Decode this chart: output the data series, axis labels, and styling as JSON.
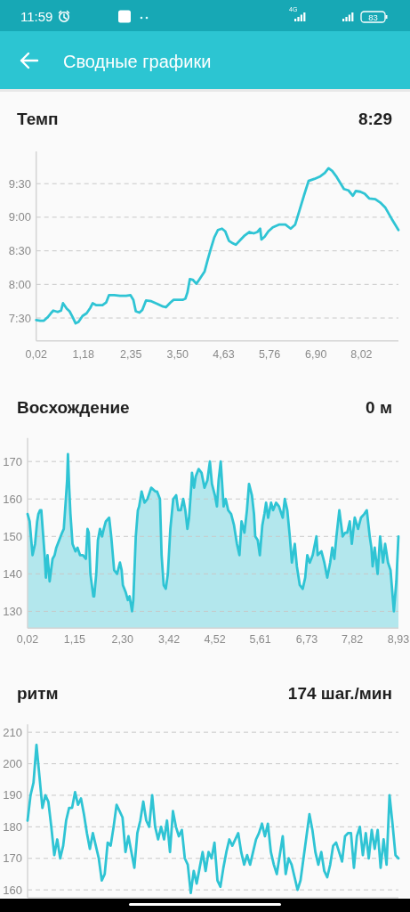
{
  "chart_data": [
    {
      "type": "other",
      "title": "Сводные графики",
      "annotations": [
        "11:59",
        "4G",
        "83"
      ]
    },
    {
      "type": "line",
      "title": "Темп",
      "subtitle": "8:29",
      "color": "#2fc4d4",
      "grid": "y",
      "xlim": [
        0.02,
        8.93
      ],
      "xticks": [
        {
          "value": 0.02,
          "label": "0,02"
        },
        {
          "value": 1.18,
          "label": "1,18"
        },
        {
          "value": 2.35,
          "label": "2,35"
        },
        {
          "value": 3.5,
          "label": "3,50"
        },
        {
          "value": 4.63,
          "label": "4,63"
        },
        {
          "value": 5.76,
          "label": "5,76"
        },
        {
          "value": 6.9,
          "label": "6,90"
        },
        {
          "value": 8.02,
          "label": "8,02"
        }
      ],
      "ylim": [
        7.16,
        9.98
      ],
      "yticks": [
        {
          "value": 7.5,
          "label": "7:30"
        },
        {
          "value": 8,
          "label": "8:00"
        },
        {
          "value": 8.5,
          "label": "8:30"
        },
        {
          "value": 9,
          "label": "9:00"
        },
        {
          "value": 9.5,
          "label": "9:30"
        }
      ],
      "x": [
        0.02,
        0.12,
        0.21,
        0.3,
        0.38,
        0.44,
        0.55,
        0.63,
        0.68,
        0.77,
        0.84,
        0.92,
        0.99,
        1.06,
        1.16,
        1.26,
        1.35,
        1.41,
        1.5,
        1.65,
        1.74,
        1.81,
        1.94,
        2.08,
        2.23,
        2.34,
        2.41,
        2.47,
        2.56,
        2.63,
        2.72,
        2.85,
        3.0,
        3.14,
        3.21,
        3.32,
        3.4,
        3.51,
        3.62,
        3.69,
        3.74,
        3.8,
        3.87,
        3.96,
        4.03,
        4.16,
        4.24,
        4.32,
        4.4,
        4.49,
        4.59,
        4.67,
        4.76,
        4.86,
        4.93,
        5.04,
        5.15,
        5.26,
        5.37,
        5.46,
        5.53,
        5.56,
        5.64,
        5.73,
        5.84,
        5.99,
        6.15,
        6.28,
        6.39,
        6.5,
        6.61,
        6.72,
        6.86,
        7.01,
        7.12,
        7.21,
        7.3,
        7.41,
        7.52,
        7.59,
        7.7,
        7.81,
        7.88,
        7.99,
        8.1,
        8.21,
        8.36,
        8.48,
        8.61,
        8.76,
        8.93
      ],
      "values": [
        7.47,
        7.46,
        7.46,
        7.51,
        7.57,
        7.61,
        7.59,
        7.61,
        7.72,
        7.64,
        7.6,
        7.51,
        7.42,
        7.44,
        7.53,
        7.57,
        7.65,
        7.72,
        7.69,
        7.69,
        7.73,
        7.84,
        7.84,
        7.83,
        7.83,
        7.84,
        7.77,
        7.6,
        7.58,
        7.62,
        7.76,
        7.75,
        7.71,
        7.67,
        7.66,
        7.73,
        7.77,
        7.77,
        7.77,
        7.79,
        7.88,
        8.08,
        8.07,
        8.01,
        8.07,
        8.19,
        8.37,
        8.54,
        8.7,
        8.81,
        8.83,
        8.79,
        8.65,
        8.61,
        8.59,
        8.66,
        8.73,
        8.78,
        8.76,
        8.78,
        8.83,
        8.67,
        8.71,
        8.79,
        8.85,
        8.89,
        8.89,
        8.83,
        8.89,
        9.11,
        9.33,
        9.54,
        9.57,
        9.61,
        9.66,
        9.73,
        9.69,
        9.6,
        9.49,
        9.42,
        9.4,
        9.32,
        9.39,
        9.38,
        9.35,
        9.28,
        9.27,
        9.22,
        9.14,
        8.98,
        8.81
      ]
    },
    {
      "type": "area",
      "title": "Восхождение",
      "subtitle": "0 м",
      "color": "#2fc4d4",
      "grid": "y",
      "xlim": [
        0.02,
        8.93
      ],
      "xticks": [
        {
          "value": 0.02,
          "label": "0,02"
        },
        {
          "value": 1.15,
          "label": "1,15"
        },
        {
          "value": 2.3,
          "label": "2,30"
        },
        {
          "value": 3.42,
          "label": "3,42"
        },
        {
          "value": 4.52,
          "label": "4,52"
        },
        {
          "value": 5.61,
          "label": "5,61"
        },
        {
          "value": 6.73,
          "label": "6,73"
        },
        {
          "value": 7.82,
          "label": "7,82"
        },
        {
          "value": 8.93,
          "label": "8,93"
        }
      ],
      "ylim": [
        125.5,
        176.3
      ],
      "yticks": [
        130,
        140,
        150,
        160,
        170
      ],
      "x": [
        0.02,
        0.07,
        0.14,
        0.2,
        0.25,
        0.28,
        0.32,
        0.35,
        0.39,
        0.43,
        0.46,
        0.5,
        0.55,
        0.62,
        0.67,
        0.71,
        0.78,
        0.85,
        0.89,
        0.94,
        0.97,
        0.99,
        1.02,
        1.05,
        1.1,
        1.17,
        1.22,
        1.28,
        1.35,
        1.42,
        1.46,
        1.49,
        1.53,
        1.6,
        1.62,
        1.67,
        1.71,
        1.76,
        1.81,
        1.85,
        1.9,
        1.98,
        2.03,
        2.1,
        2.17,
        2.24,
        2.28,
        2.31,
        2.38,
        2.43,
        2.47,
        2.53,
        2.56,
        2.62,
        2.67,
        2.7,
        2.76,
        2.83,
        2.9,
        2.99,
        3.09,
        3.13,
        3.2,
        3.24,
        3.29,
        3.34,
        3.39,
        3.45,
        3.52,
        3.59,
        3.64,
        3.7,
        3.76,
        3.81,
        3.86,
        3.9,
        3.95,
        3.97,
        4.02,
        4.06,
        4.13,
        4.2,
        4.27,
        4.34,
        4.4,
        4.45,
        4.52,
        4.57,
        4.61,
        4.66,
        4.73,
        4.78,
        4.84,
        4.91,
        4.98,
        5.05,
        5.11,
        5.16,
        5.23,
        5.29,
        5.34,
        5.41,
        5.46,
        5.49,
        5.55,
        5.6,
        5.66,
        5.71,
        5.75,
        5.8,
        5.87,
        5.92,
        5.99,
        6.06,
        6.15,
        6.2,
        6.26,
        6.32,
        6.37,
        6.44,
        6.49,
        6.56,
        6.63,
        6.69,
        6.74,
        6.8,
        6.87,
        6.96,
        6.99,
        7.08,
        7.15,
        7.22,
        7.29,
        7.34,
        7.39,
        7.44,
        7.51,
        7.59,
        7.65,
        7.7,
        7.76,
        7.81,
        7.88,
        7.96,
        8.03,
        8.11,
        8.17,
        8.24,
        8.28,
        8.31,
        8.36,
        8.43,
        8.49,
        8.56,
        8.61,
        8.68,
        8.74,
        8.82,
        8.88,
        8.93
      ],
      "values": [
        156,
        154,
        145,
        148,
        154,
        156,
        157,
        157,
        151,
        145,
        139,
        145,
        138,
        144,
        145,
        147,
        149,
        151,
        152,
        160,
        165,
        172,
        163,
        156,
        148,
        146,
        147,
        145,
        145,
        144,
        152,
        151,
        140,
        134,
        134,
        140,
        149,
        152,
        150,
        152,
        154,
        155,
        150,
        141,
        140,
        143,
        141,
        137,
        135,
        133,
        134,
        130,
        133,
        150,
        157,
        158,
        162,
        159,
        160,
        163,
        162,
        162,
        160,
        145,
        137,
        136,
        140,
        152,
        160,
        161,
        157,
        157,
        160,
        157,
        152,
        155,
        163,
        167,
        163,
        166,
        168,
        167,
        163,
        165,
        170,
        164,
        161,
        158,
        165,
        170,
        158,
        160,
        157,
        156,
        153,
        148,
        145,
        154,
        151,
        157,
        164,
        161,
        156,
        150,
        149,
        145,
        153,
        156,
        159,
        155,
        159,
        157,
        159,
        158,
        155,
        160,
        157,
        150,
        143,
        148,
        142,
        137,
        136,
        139,
        145,
        143,
        145,
        150,
        145,
        146,
        143,
        139,
        143,
        147,
        144,
        150,
        157,
        150,
        151,
        151,
        154,
        148,
        155,
        152,
        155,
        156,
        157,
        150,
        147,
        142,
        147,
        140,
        150,
        143,
        148,
        143,
        141,
        130,
        138,
        150
      ]
    },
    {
      "type": "line",
      "title": "ритм",
      "subtitle": "174 шаг./мин",
      "color": "#2fc4d4",
      "grid": "y",
      "tick_labels": "y",
      "ylim": [
        157.5,
        212.5
      ],
      "yticks": [
        160,
        170,
        180,
        190,
        200,
        210
      ],
      "categories": [
        null,
        null,
        null,
        null,
        null,
        null,
        null,
        null,
        null,
        null,
        null,
        null,
        null,
        null,
        null,
        null,
        null,
        null,
        null,
        null,
        null,
        null,
        null,
        null,
        null,
        null,
        null,
        null,
        null,
        null,
        null,
        null,
        null,
        null,
        null,
        null,
        null,
        null,
        null,
        null,
        null,
        null,
        null,
        null,
        null,
        null,
        null,
        null,
        null,
        null,
        null,
        null,
        null,
        null,
        null,
        null,
        null,
        null,
        null,
        null,
        null,
        null,
        null,
        null,
        null,
        null,
        null,
        null,
        null,
        null,
        null,
        null,
        null,
        null,
        null,
        null,
        null,
        null,
        null,
        null,
        null,
        null,
        null,
        null,
        null,
        null,
        null,
        null,
        null,
        null,
        null,
        null,
        null,
        null,
        null,
        null,
        null,
        null,
        null,
        null,
        null,
        null,
        null,
        null,
        null,
        null,
        null,
        null,
        null,
        null,
        null,
        null,
        null,
        null,
        null,
        null,
        null,
        null,
        null,
        null,
        null,
        null,
        null,
        null,
        null,
        null
      ],
      "values": [
        182,
        190,
        194,
        206,
        196,
        186,
        190,
        188,
        180,
        171,
        176,
        170,
        174,
        182,
        186,
        186,
        191,
        187,
        189,
        184,
        178,
        173,
        178,
        174,
        170,
        163,
        165,
        175,
        174,
        180,
        187,
        185,
        183,
        172,
        177,
        172,
        167,
        178,
        182,
        188,
        182,
        180,
        190,
        180,
        176,
        180,
        176,
        182,
        172,
        185,
        180,
        177,
        179,
        170,
        168,
        159,
        166,
        162,
        167,
        172,
        166,
        172,
        170,
        175,
        163,
        161,
        167,
        172,
        176,
        174,
        176,
        178,
        172,
        168,
        171,
        168,
        172,
        176,
        178,
        181,
        177,
        181,
        172,
        168,
        165,
        171,
        177,
        165,
        170,
        168,
        164,
        160,
        163,
        170,
        177,
        184,
        179,
        172,
        168,
        172,
        166,
        164,
        168,
        174,
        175,
        172,
        169,
        177,
        178,
        178,
        167,
        177,
        180,
        171,
        178,
        170,
        179,
        173,
        179,
        167,
        176,
        168,
        190,
        181,
        171,
        170
      ]
    }
  ]
}
